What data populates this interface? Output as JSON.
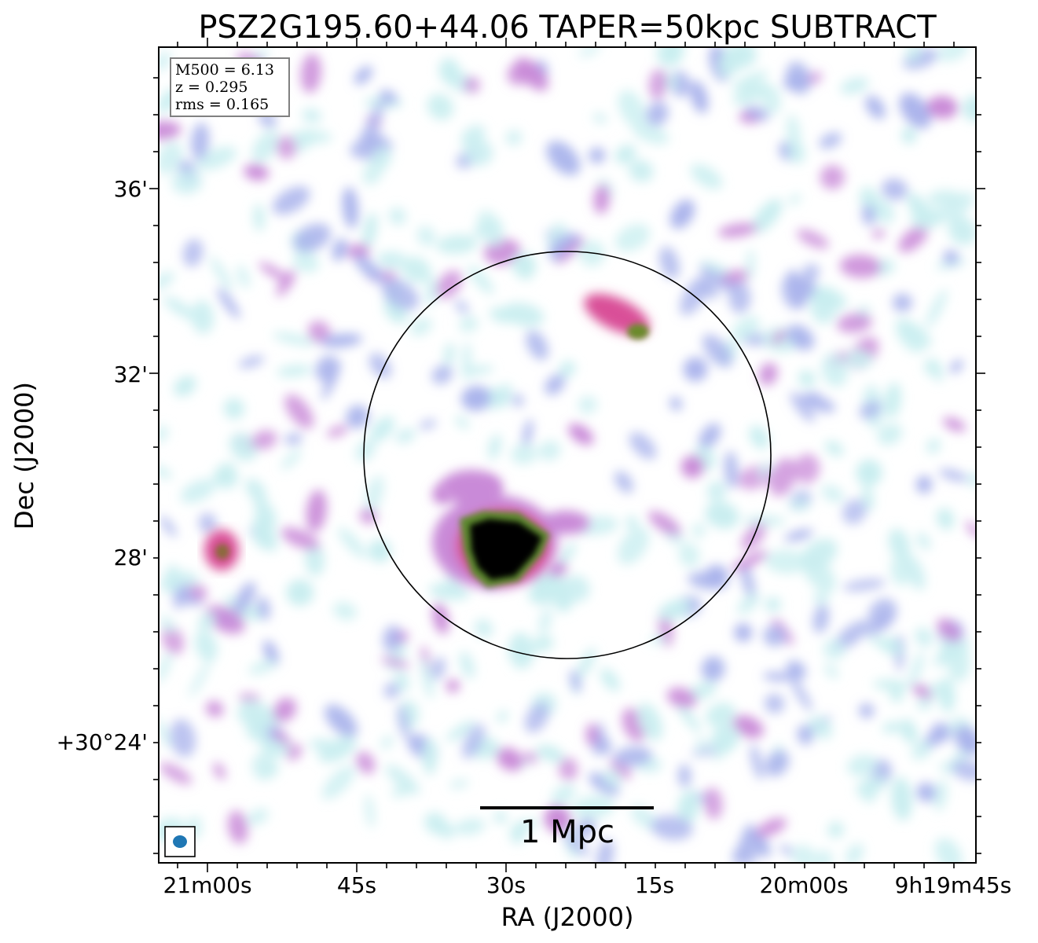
{
  "chart_data": {
    "type": "heatmap",
    "title": "PSZ2G195.60+44.06 TAPER=50kpc SUBTRACT",
    "xlabel": "RA (J2000)",
    "ylabel": "Dec (J2000)",
    "x_ticks": [
      "21m00s",
      "45s",
      "30s",
      "15s",
      "20m00s",
      "9h19m45s"
    ],
    "y_ticks": [
      "36'",
      "32'",
      "28'",
      "+30°24'"
    ],
    "info_box": [
      "M500 = 6.13",
      "z = 0.295",
      "rms = 0.165"
    ],
    "scale_bar_label": "1 Mpc",
    "colormap": [
      "#c9eef0",
      "#aab4ec",
      "#c98ad8",
      "#d94f98",
      "#6b8a2a",
      "#3c6b2a",
      "#000000"
    ],
    "circle_color": "#000000",
    "beam_color": "#1f77b4"
  }
}
